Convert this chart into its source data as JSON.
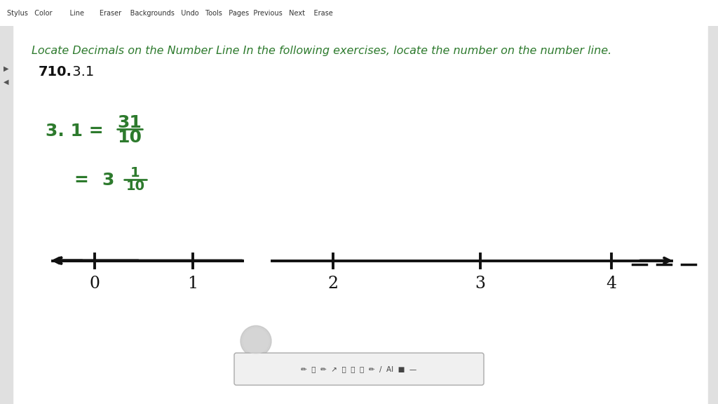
{
  "title_text": "Locate Decimals on the Number Line In the following exercises, locate the number on the number line.",
  "problem_number": "710.",
  "problem_value": " 3.1",
  "eq_line1_left": "3. 1 =",
  "eq_line1_right_num": "31",
  "eq_line1_right_den": "10",
  "eq_line2_left": "=",
  "eq_line2_whole": "3",
  "eq_line2_num": "1",
  "eq_line2_den": "10",
  "green_color": "#2d7a2d",
  "black_color": "#111111",
  "bg_color": "#ffffff",
  "toolbar_bg": "#c8c8c8",
  "title_fontsize": 11.5,
  "problem_fontsize": 14,
  "eq_fontsize": 18,
  "eq2_fontsize": 14,
  "nl_label_fontsize": 17
}
